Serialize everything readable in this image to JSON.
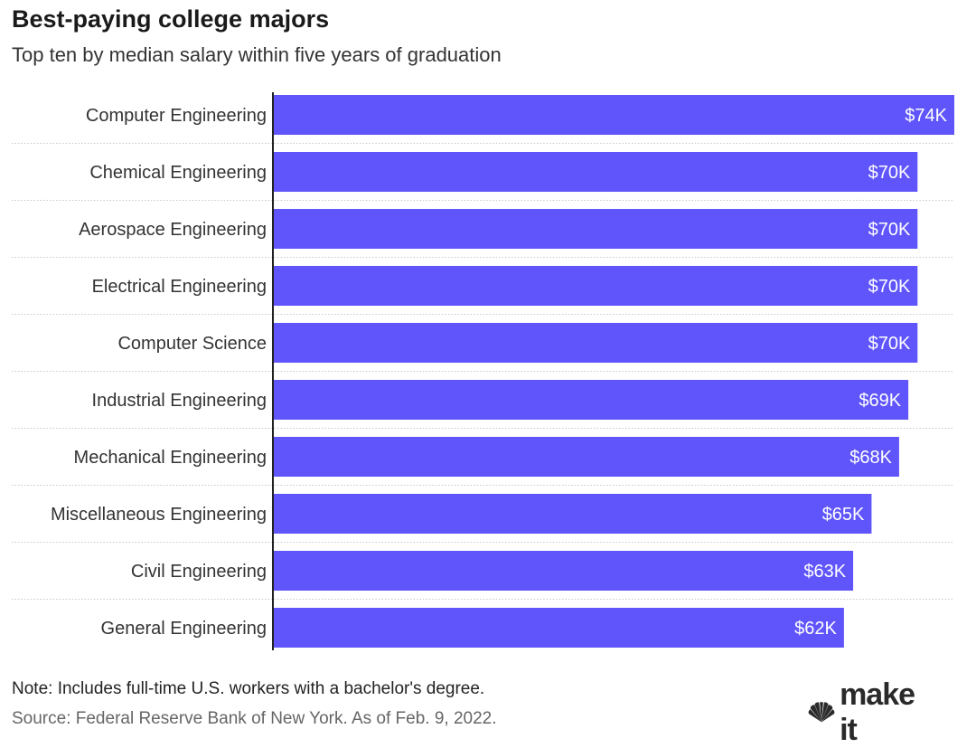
{
  "header": {
    "title": "Best-paying college majors",
    "subtitle": "Top ten by median salary within five years of graduation"
  },
  "footer": {
    "note": "Note: Includes full-time U.S. workers with a bachelor's degree.",
    "source": "Source: Federal Reserve Bank of New York. As of Feb. 9, 2022.",
    "logo_brand": "CNBC",
    "logo_text": "make it"
  },
  "chart_data": {
    "type": "bar",
    "orientation": "horizontal",
    "unit": "K",
    "categories": [
      "Computer Engineering",
      "Chemical Engineering",
      "Aerospace Engineering",
      "Electrical Engineering",
      "Computer Science",
      "Industrial Engineering",
      "Mechanical Engineering",
      "Miscellaneous Engineering",
      "Civil Engineering",
      "General Engineering"
    ],
    "values": [
      74,
      70,
      70,
      70,
      70,
      69,
      68,
      65,
      63,
      62
    ],
    "labels": [
      "$74K",
      "$70K",
      "$70K",
      "$70K",
      "$70K",
      "$69K",
      "$68K",
      "$65K",
      "$63K",
      "$62K"
    ],
    "title": "Best-paying college majors",
    "subtitle": "Top ten by median salary within five years of graduation",
    "xlim": [
      0,
      74
    ],
    "grid": false,
    "legend": "none",
    "bar_color": "#5f55fb",
    "label_color": "#ffffff"
  }
}
